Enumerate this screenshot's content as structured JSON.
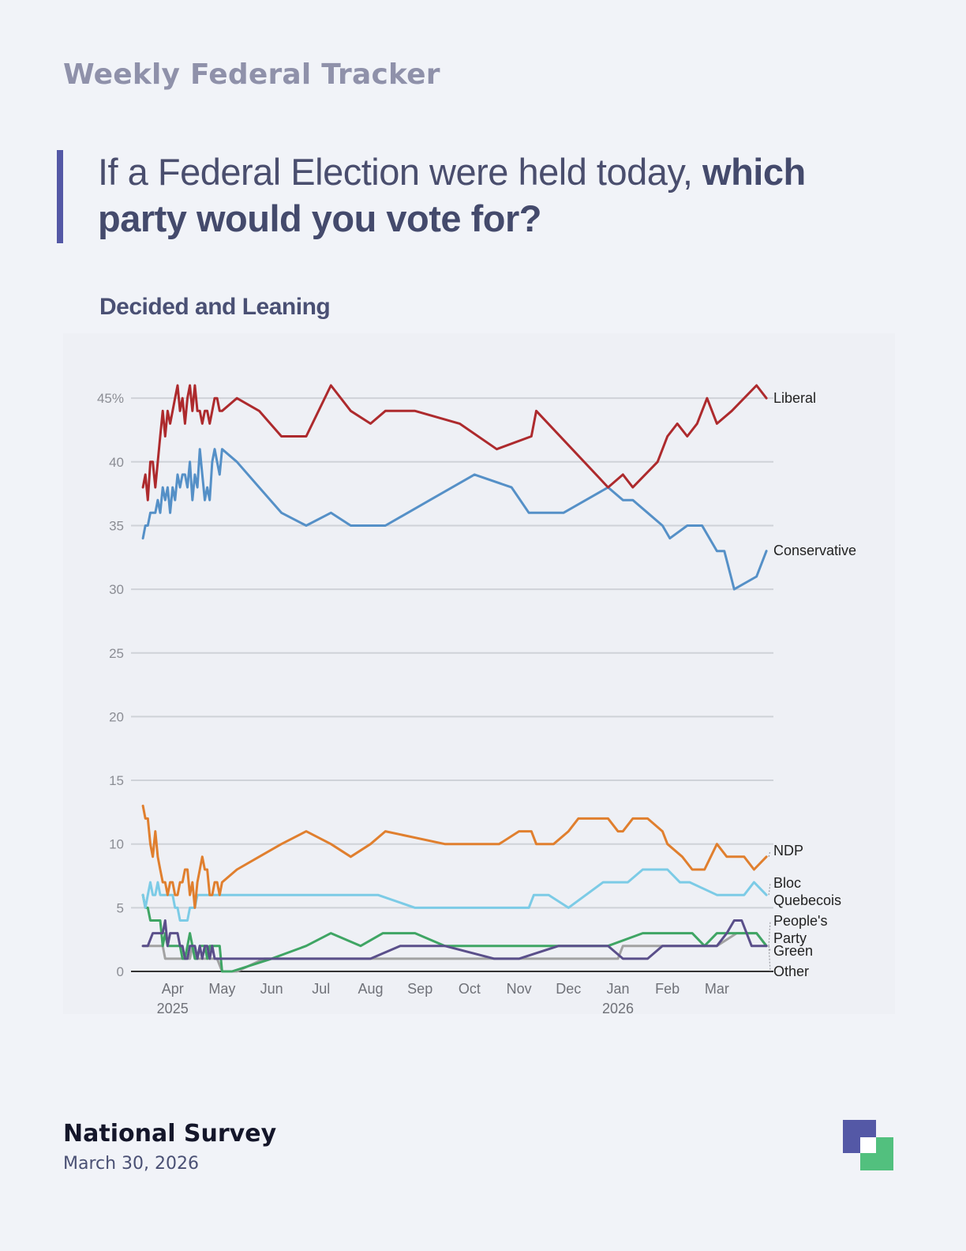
{
  "header": {
    "tracker_title": "Weekly Federal Tracker",
    "question_regular": "If a Federal Election were held today, ",
    "question_bold": "which party would you vote for?",
    "subtitle": "Decided and Leaning"
  },
  "footer": {
    "title": "National Survey",
    "date": "March 30, 2026"
  },
  "colors": {
    "Liberal": "#ad2a2d",
    "Conservative": "#5590c7",
    "NDP": "#e07f2e",
    "Bloc Quebecois": "#7ccbe6",
    "People's Party": "#5a4f8a",
    "Green": "#3fa564",
    "Other": "#a2a2a2",
    "brand_primary": "#5458a6",
    "brand_secondary": "#52c07e"
  },
  "chart_data": {
    "type": "line",
    "title": "Decided and Leaning",
    "ylabel": "%",
    "ylim": [
      0,
      46
    ],
    "yticks": [
      0,
      5,
      10,
      15,
      20,
      25,
      30,
      35,
      40,
      45
    ],
    "ytick_labels": [
      "0",
      "5",
      "10",
      "15",
      "20",
      "25",
      "30",
      "35",
      "40",
      "45%"
    ],
    "x_unit": "months since Mar 1, 2025",
    "xlim": [
      0.5,
      13.6
    ],
    "xticks": [
      {
        "x": 1,
        "label": "Apr",
        "year": "2025"
      },
      {
        "x": 2,
        "label": "May",
        "year": ""
      },
      {
        "x": 3,
        "label": "Jun",
        "year": ""
      },
      {
        "x": 4,
        "label": "Jul",
        "year": ""
      },
      {
        "x": 5,
        "label": "Aug",
        "year": ""
      },
      {
        "x": 6,
        "label": "Sep",
        "year": ""
      },
      {
        "x": 7,
        "label": "Oct",
        "year": ""
      },
      {
        "x": 8,
        "label": "Nov",
        "year": ""
      },
      {
        "x": 9,
        "label": "Dec",
        "year": ""
      },
      {
        "x": 10,
        "label": "Jan",
        "year": "2026"
      },
      {
        "x": 11,
        "label": "Feb",
        "year": ""
      },
      {
        "x": 12,
        "label": "Mar",
        "year": ""
      }
    ],
    "series": [
      {
        "name": "Liberal",
        "label_lines": [
          "Liberal"
        ],
        "x": [
          0.4,
          0.45,
          0.5,
          0.55,
          0.6,
          0.65,
          0.7,
          0.75,
          0.8,
          0.85,
          0.9,
          0.95,
          1,
          1.05,
          1.1,
          1.15,
          1.2,
          1.25,
          1.3,
          1.35,
          1.4,
          1.45,
          1.5,
          1.55,
          1.6,
          1.65,
          1.7,
          1.75,
          1.8,
          1.85,
          1.9,
          1.95,
          2,
          2.3,
          2.75,
          3.2,
          3.7,
          4.2,
          4.6,
          5,
          5.3,
          5.9,
          6.8,
          7.55,
          8.25,
          8.35,
          9.8,
          10.1,
          10.3,
          10.8,
          11,
          11.2,
          11.4,
          11.6,
          11.8,
          12,
          12.3,
          12.8,
          13
        ],
        "y": [
          38,
          39,
          37,
          40,
          40,
          38,
          40,
          42,
          44,
          42,
          44,
          43,
          44,
          45,
          46,
          44,
          45,
          43,
          45,
          46,
          44,
          46,
          44,
          44,
          43,
          44,
          44,
          43,
          44,
          45,
          45,
          44,
          44,
          45,
          44,
          42,
          42,
          46,
          44,
          43,
          44,
          44,
          43,
          41,
          42,
          44,
          38,
          39,
          38,
          40,
          42,
          43,
          42,
          43,
          45,
          43,
          44,
          46,
          45
        ]
      },
      {
        "name": "Conservative",
        "label_lines": [
          "Conservative"
        ],
        "x": [
          0.4,
          0.45,
          0.5,
          0.55,
          0.6,
          0.65,
          0.7,
          0.75,
          0.8,
          0.85,
          0.9,
          0.95,
          1,
          1.05,
          1.1,
          1.15,
          1.2,
          1.25,
          1.3,
          1.35,
          1.4,
          1.45,
          1.5,
          1.55,
          1.6,
          1.65,
          1.7,
          1.75,
          1.8,
          1.85,
          1.9,
          1.95,
          2,
          2.3,
          2.75,
          3.2,
          3.7,
          4.2,
          4.6,
          5,
          5.3,
          6.2,
          7.1,
          7.85,
          8.2,
          8.45,
          8.9,
          9.8,
          10.1,
          10.3,
          10.6,
          10.9,
          11.05,
          11.4,
          11.7,
          12,
          12.15,
          12.35,
          12.8,
          13
        ],
        "y": [
          34,
          35,
          35,
          36,
          36,
          36,
          37,
          36,
          38,
          37,
          38,
          36,
          38,
          37,
          39,
          38,
          39,
          39,
          38,
          40,
          37,
          39,
          38,
          41,
          39,
          37,
          38,
          37,
          40,
          41,
          40,
          39,
          41,
          40,
          38,
          36,
          35,
          36,
          35,
          35,
          35,
          37,
          39,
          38,
          36,
          36,
          36,
          38,
          37,
          37,
          36,
          35,
          34,
          35,
          35,
          33,
          33,
          30,
          31,
          33
        ]
      },
      {
        "name": "NDP",
        "label_lines": [
          "NDP"
        ],
        "x": [
          0.4,
          0.45,
          0.5,
          0.55,
          0.6,
          0.65,
          0.7,
          0.75,
          0.8,
          0.85,
          0.9,
          0.95,
          1,
          1.05,
          1.1,
          1.15,
          1.2,
          1.25,
          1.3,
          1.35,
          1.4,
          1.45,
          1.5,
          1.55,
          1.6,
          1.65,
          1.7,
          1.75,
          1.8,
          1.85,
          1.9,
          1.95,
          2,
          2.3,
          2.75,
          3.2,
          3.7,
          4.2,
          4.6,
          5,
          5.3,
          6.5,
          7.2,
          7.6,
          8,
          8.25,
          8.35,
          8.7,
          9,
          9.2,
          9.8,
          10,
          10.1,
          10.3,
          10.6,
          10.9,
          11,
          11.3,
          11.5,
          11.75,
          12,
          12.2,
          12.55,
          12.75,
          13
        ],
        "y": [
          13,
          12,
          12,
          10,
          9,
          11,
          9,
          8,
          7,
          7,
          6,
          7,
          7,
          6,
          6,
          7,
          7,
          8,
          8,
          6,
          7,
          5,
          7,
          8,
          9,
          8,
          8,
          6,
          6,
          7,
          7,
          6,
          7,
          8,
          9,
          10,
          11,
          10,
          9,
          10,
          11,
          10,
          10,
          10,
          11,
          11,
          10,
          10,
          11,
          12,
          12,
          11,
          11,
          12,
          12,
          11,
          10,
          9,
          8,
          8,
          10,
          9,
          9,
          8,
          9
        ]
      },
      {
        "name": "Bloc Quebecois",
        "label_lines": [
          "Bloc",
          "Quebecois"
        ],
        "x": [
          0.4,
          0.45,
          0.5,
          0.55,
          0.6,
          0.65,
          0.7,
          0.75,
          0.8,
          0.85,
          0.9,
          0.95,
          1,
          1.05,
          1.1,
          1.15,
          1.2,
          1.25,
          1.3,
          1.35,
          1.4,
          1.45,
          1.5,
          1.55,
          1.6,
          1.65,
          1.7,
          1.75,
          1.8,
          1.85,
          1.9,
          1.95,
          2,
          3,
          4,
          5.15,
          5.9,
          6.5,
          7,
          7.6,
          8.2,
          8.3,
          8.6,
          9,
          9.7,
          10.2,
          10.5,
          11,
          11.25,
          11.45,
          12,
          12.3,
          12.55,
          12.75,
          13
        ],
        "y": [
          6,
          5,
          6,
          7,
          6,
          6,
          7,
          6,
          6,
          6,
          6,
          6,
          6,
          5,
          5,
          4,
          4,
          4,
          4,
          5,
          5,
          5,
          6,
          6,
          6,
          6,
          6,
          6,
          6,
          6,
          6,
          6,
          6,
          6,
          6,
          6,
          5,
          5,
          5,
          5,
          5,
          6,
          6,
          5,
          7,
          7,
          8,
          8,
          7,
          7,
          6,
          6,
          6,
          7,
          6
        ]
      },
      {
        "name": "People's Party",
        "label_lines": [
          "People's",
          "Party"
        ],
        "x": [
          0.4,
          0.5,
          0.6,
          0.7,
          0.8,
          0.85,
          0.9,
          0.95,
          1,
          1.05,
          1.1,
          1.15,
          1.2,
          1.25,
          1.3,
          1.35,
          1.4,
          1.45,
          1.5,
          1.55,
          1.6,
          1.65,
          1.7,
          1.75,
          1.8,
          1.85,
          1.9,
          2,
          5,
          5.6,
          6.5,
          7.5,
          8,
          8.8,
          9.8,
          10.1,
          10.4,
          10.6,
          10.9,
          11,
          11.5,
          11.8,
          12,
          12.2,
          12.35,
          12.5,
          12.7,
          12.8,
          13
        ],
        "y": [
          2,
          2,
          3,
          3,
          3,
          4,
          2,
          3,
          3,
          3,
          3,
          2,
          2,
          1,
          1,
          2,
          2,
          2,
          1,
          2,
          1,
          2,
          2,
          1,
          2,
          1,
          1,
          1,
          1,
          2,
          2,
          1,
          1,
          2,
          2,
          1,
          1,
          1,
          2,
          2,
          2,
          2,
          2,
          3,
          4,
          4,
          2,
          2,
          2
        ]
      },
      {
        "name": "Green",
        "label_lines": [
          "Green"
        ],
        "x": [
          0.4,
          0.45,
          0.5,
          0.55,
          0.6,
          0.65,
          0.7,
          0.75,
          0.8,
          0.85,
          0.9,
          0.95,
          1,
          1.05,
          1.1,
          1.15,
          1.2,
          1.25,
          1.3,
          1.35,
          1.4,
          1.45,
          1.5,
          1.55,
          1.6,
          1.65,
          1.7,
          1.75,
          1.8,
          1.85,
          1.9,
          1.95,
          2,
          2.2,
          3,
          3.7,
          4.2,
          4.8,
          5.25,
          5.9,
          6.5,
          8.5,
          9.8,
          10.5,
          11,
          11.3,
          11.5,
          11.75,
          12,
          12.5,
          12.8,
          13
        ],
        "y": [
          6,
          5,
          5,
          4,
          4,
          4,
          4,
          4,
          2,
          3,
          2,
          2,
          2,
          2,
          2,
          2,
          1,
          1,
          2,
          3,
          2,
          1,
          1,
          2,
          2,
          2,
          1,
          2,
          2,
          2,
          2,
          2,
          0,
          0,
          1,
          2,
          3,
          2,
          3,
          3,
          2,
          2,
          2,
          3,
          3,
          3,
          3,
          2,
          3,
          3,
          3,
          2
        ]
      },
      {
        "name": "Other",
        "label_lines": [
          "Other"
        ],
        "x": [
          0.4,
          0.5,
          0.6,
          0.7,
          0.8,
          0.85,
          0.9,
          1,
          1.1,
          1.2,
          1.3,
          1.35,
          1.4,
          1.45,
          1.5,
          1.6,
          1.7,
          1.8,
          1.9,
          2,
          2.3,
          2.85,
          5.15,
          10,
          10.1,
          10.3,
          11,
          12,
          12.4,
          12.8,
          13
        ],
        "y": [
          2,
          2,
          2,
          2,
          2,
          1,
          1,
          1,
          1,
          1,
          1,
          1,
          2,
          1,
          1,
          1,
          1,
          1,
          1,
          0,
          0,
          1,
          1,
          1,
          2,
          2,
          2,
          2,
          3,
          3,
          2
        ]
      }
    ]
  }
}
